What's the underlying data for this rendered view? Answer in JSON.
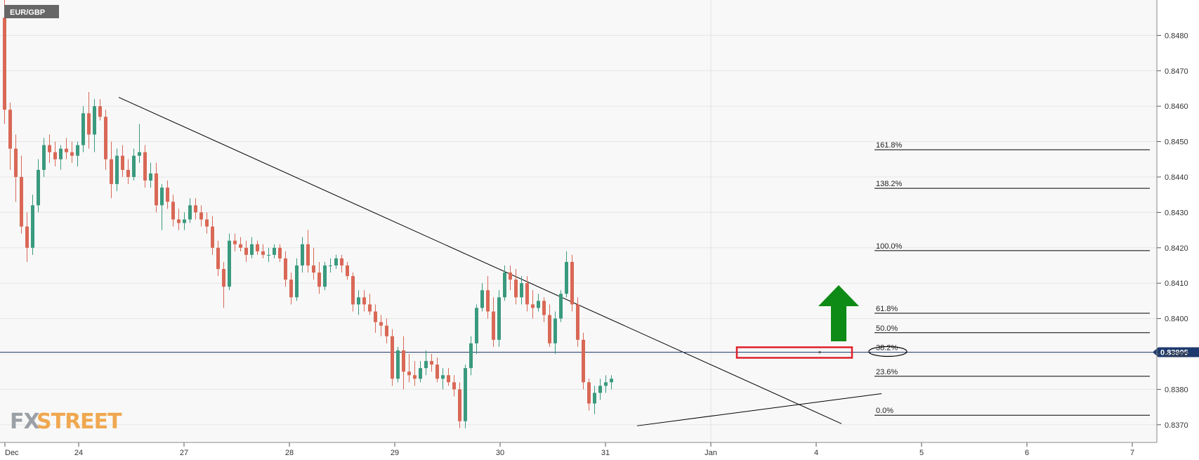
{
  "chart_data": {
    "type": "candlestick",
    "symbol": "EUR/GBP",
    "current_price": 0.83905,
    "current_price_label": "0.83905",
    "ylim": [
      0.8365,
      0.849
    ],
    "y_ticks": [
      "0.8480",
      "0.8470",
      "0.8460",
      "0.8450",
      "0.8440",
      "0.8430",
      "0.8420",
      "0.8410",
      "0.8400",
      "0.8390",
      "0.8380",
      "0.8370"
    ],
    "x_range": [
      -0.7,
      7.0
    ],
    "x_ticks": [
      {
        "label": "Dec",
        "x": -0.7
      },
      {
        "label": "24",
        "x": 0
      },
      {
        "label": "27",
        "x": 1
      },
      {
        "label": "28",
        "x": 2
      },
      {
        "label": "29",
        "x": 3
      },
      {
        "label": "30",
        "x": 4
      },
      {
        "label": "31",
        "x": 5
      },
      {
        "label": "Jan",
        "x": 6
      },
      {
        "label": "4",
        "x": 7
      }
    ],
    "x_ticks_future": [
      "5",
      "6",
      "7"
    ],
    "colors": {
      "up": "#3a9a7e",
      "down": "#d96856",
      "line": "#000000",
      "annotation": "#e0202a",
      "arrow": "#0e8a16",
      "symbol_bg": "#666666",
      "price_bg": "#1e3a6e"
    },
    "fibonacci": [
      {
        "label": "161.8%",
        "price": 0.84477
      },
      {
        "label": "138.2%",
        "price": 0.84368
      },
      {
        "label": "100.0%",
        "price": 0.84192
      },
      {
        "label": "61.8%",
        "price": 0.84015
      },
      {
        "label": "50.0%",
        "price": 0.8396
      },
      {
        "label": "38.2%",
        "price": 0.83905
      },
      {
        "label": "23.6%",
        "price": 0.83837
      },
      {
        "label": "0.0%",
        "price": 0.83727
      }
    ],
    "trendlines": [
      {
        "name": "downtrend",
        "from": [
          0.38,
          0.84625
        ],
        "to": [
          7.24,
          0.83703
        ]
      },
      {
        "name": "uptrend",
        "from": [
          5.3,
          0.83697
        ],
        "to": [
          7.62,
          0.83788
        ]
      }
    ],
    "candles": [
      [
        0.8485,
        0.84905,
        0.8455,
        0.8459
      ],
      [
        0.8459,
        0.8461,
        0.8442,
        0.8448
      ],
      [
        0.8448,
        0.8452,
        0.8433,
        0.844
      ],
      [
        0.844,
        0.8446,
        0.8424,
        0.8426
      ],
      [
        0.8426,
        0.843,
        0.8416,
        0.842
      ],
      [
        0.842,
        0.8435,
        0.8418,
        0.8432
      ],
      [
        0.8432,
        0.8445,
        0.843,
        0.8442
      ],
      [
        0.8442,
        0.8451,
        0.844,
        0.8449
      ],
      [
        0.8449,
        0.8452,
        0.8444,
        0.8447
      ],
      [
        0.8447,
        0.845,
        0.8443,
        0.8445
      ],
      [
        0.8445,
        0.8449,
        0.8442,
        0.8448
      ],
      [
        0.8448,
        0.8451,
        0.8445,
        0.8447
      ],
      [
        0.8447,
        0.845,
        0.8444,
        0.8446
      ],
      [
        0.8446,
        0.845,
        0.8443,
        0.8449
      ],
      [
        0.8449,
        0.846,
        0.8447,
        0.8458
      ],
      [
        0.8458,
        0.8464,
        0.8448,
        0.8452
      ],
      [
        0.8452,
        0.8462,
        0.8447,
        0.846
      ],
      [
        0.846,
        0.8462,
        0.8456,
        0.8457
      ],
      [
        0.8457,
        0.8459,
        0.8442,
        0.8445
      ],
      [
        0.8445,
        0.845,
        0.8434,
        0.8438
      ],
      [
        0.8438,
        0.8448,
        0.8436,
        0.8446
      ],
      [
        0.8446,
        0.8449,
        0.844,
        0.8442
      ],
      [
        0.8442,
        0.8445,
        0.8438,
        0.844
      ],
      [
        0.844,
        0.8448,
        0.8439,
        0.8446
      ],
      [
        0.8446,
        0.8455,
        0.8444,
        0.8447
      ],
      [
        0.8447,
        0.8449,
        0.8437,
        0.8439
      ],
      [
        0.8439,
        0.8444,
        0.8437,
        0.8441
      ],
      [
        0.8441,
        0.8444,
        0.843,
        0.8432
      ],
      [
        0.8432,
        0.8438,
        0.8425,
        0.8437
      ],
      [
        0.8437,
        0.8439,
        0.8431,
        0.8433
      ],
      [
        0.8433,
        0.8435,
        0.8426,
        0.8428
      ],
      [
        0.8428,
        0.8431,
        0.8425,
        0.8427
      ],
      [
        0.8427,
        0.843,
        0.8425,
        0.8428
      ],
      [
        0.8428,
        0.8434,
        0.8427,
        0.8432
      ],
      [
        0.8432,
        0.8434,
        0.8428,
        0.843
      ],
      [
        0.843,
        0.8432,
        0.8426,
        0.8428
      ],
      [
        0.8428,
        0.843,
        0.8424,
        0.8426
      ],
      [
        0.8426,
        0.8429,
        0.8418,
        0.842
      ],
      [
        0.842,
        0.8422,
        0.8412,
        0.8414
      ],
      [
        0.8414,
        0.8416,
        0.8403,
        0.8409
      ],
      [
        0.8409,
        0.8424,
        0.8408,
        0.8422
      ],
      [
        0.8422,
        0.8424,
        0.8419,
        0.8421
      ],
      [
        0.8421,
        0.8423,
        0.8419,
        0.842
      ],
      [
        0.842,
        0.8422,
        0.8416,
        0.8418
      ],
      [
        0.8418,
        0.8423,
        0.8417,
        0.8421
      ],
      [
        0.8421,
        0.8422,
        0.8418,
        0.8419
      ],
      [
        0.8419,
        0.8421,
        0.8417,
        0.8418
      ],
      [
        0.8418,
        0.842,
        0.8416,
        0.8418
      ],
      [
        0.8418,
        0.8421,
        0.8417,
        0.842
      ],
      [
        0.842,
        0.8421,
        0.8416,
        0.8417
      ],
      [
        0.8417,
        0.8419,
        0.8409,
        0.8411
      ],
      [
        0.8411,
        0.8413,
        0.8404,
        0.8406
      ],
      [
        0.8406,
        0.8417,
        0.8405,
        0.8415
      ],
      [
        0.8415,
        0.8423,
        0.8413,
        0.8421
      ],
      [
        0.8421,
        0.8425,
        0.8413,
        0.8415
      ],
      [
        0.8415,
        0.842,
        0.8411,
        0.8413
      ],
      [
        0.8413,
        0.8416,
        0.8407,
        0.8409
      ],
      [
        0.8409,
        0.8416,
        0.8408,
        0.8415
      ],
      [
        0.8415,
        0.8417,
        0.8413,
        0.8415
      ],
      [
        0.8415,
        0.8418,
        0.8414,
        0.8417
      ],
      [
        0.8417,
        0.8418,
        0.8413,
        0.8415
      ],
      [
        0.8415,
        0.8416,
        0.8411,
        0.8412
      ],
      [
        0.8412,
        0.8413,
        0.8402,
        0.8404
      ],
      [
        0.8404,
        0.8408,
        0.8401,
        0.8406
      ],
      [
        0.8406,
        0.8408,
        0.8402,
        0.8404
      ],
      [
        0.8404,
        0.8407,
        0.8401,
        0.8402
      ],
      [
        0.8402,
        0.8404,
        0.8396,
        0.8399
      ],
      [
        0.8399,
        0.8401,
        0.8395,
        0.8398
      ],
      [
        0.8398,
        0.84,
        0.8393,
        0.8395
      ],
      [
        0.8395,
        0.8397,
        0.8381,
        0.8383
      ],
      [
        0.8383,
        0.8392,
        0.8382,
        0.8391
      ],
      [
        0.8391,
        0.8395,
        0.838,
        0.8385
      ],
      [
        0.8385,
        0.839,
        0.8382,
        0.8384
      ],
      [
        0.8384,
        0.8388,
        0.8381,
        0.8383
      ],
      [
        0.8383,
        0.8388,
        0.8382,
        0.8386
      ],
      [
        0.8386,
        0.8391,
        0.8384,
        0.8388
      ],
      [
        0.8388,
        0.839,
        0.8385,
        0.8387
      ],
      [
        0.8387,
        0.8389,
        0.8382,
        0.8383
      ],
      [
        0.8383,
        0.8386,
        0.838,
        0.8384
      ],
      [
        0.8384,
        0.8386,
        0.8381,
        0.8382
      ],
      [
        0.8382,
        0.8384,
        0.8378,
        0.838
      ],
      [
        0.838,
        0.8382,
        0.8369,
        0.8371
      ],
      [
        0.8371,
        0.8387,
        0.8369,
        0.8386
      ],
      [
        0.8386,
        0.8395,
        0.8384,
        0.8393
      ],
      [
        0.8393,
        0.8404,
        0.839,
        0.8403
      ],
      [
        0.8403,
        0.841,
        0.8402,
        0.8408
      ],
      [
        0.8408,
        0.8412,
        0.84,
        0.8402
      ],
      [
        0.8402,
        0.8406,
        0.8392,
        0.8394
      ],
      [
        0.8394,
        0.8408,
        0.8392,
        0.8406
      ],
      [
        0.8406,
        0.8415,
        0.8405,
        0.8413
      ],
      [
        0.8413,
        0.8415,
        0.8408,
        0.8411
      ],
      [
        0.8411,
        0.8414,
        0.8404,
        0.8406
      ],
      [
        0.8406,
        0.8412,
        0.8404,
        0.841
      ],
      [
        0.841,
        0.8412,
        0.8402,
        0.8404
      ],
      [
        0.8404,
        0.8408,
        0.84,
        0.8403
      ],
      [
        0.8403,
        0.8407,
        0.8402,
        0.8405
      ],
      [
        0.8405,
        0.8406,
        0.8399,
        0.8401
      ],
      [
        0.8401,
        0.8404,
        0.8392,
        0.8393
      ],
      [
        0.8393,
        0.8402,
        0.839,
        0.84
      ],
      [
        0.84,
        0.8408,
        0.8399,
        0.8407
      ],
      [
        0.8407,
        0.8419,
        0.8406,
        0.8416
      ],
      [
        0.8416,
        0.8418,
        0.8402,
        0.8404
      ],
      [
        0.8404,
        0.8406,
        0.8392,
        0.8394
      ],
      [
        0.8394,
        0.8396,
        0.838,
        0.8382
      ],
      [
        0.8382,
        0.8383,
        0.8374,
        0.8376
      ],
      [
        0.8376,
        0.8381,
        0.8373,
        0.8379
      ],
      [
        0.8379,
        0.8383,
        0.8377,
        0.8381
      ],
      [
        0.8381,
        0.8384,
        0.8379,
        0.8382
      ],
      [
        0.8382,
        0.8384,
        0.838,
        0.8383
      ]
    ]
  }
}
